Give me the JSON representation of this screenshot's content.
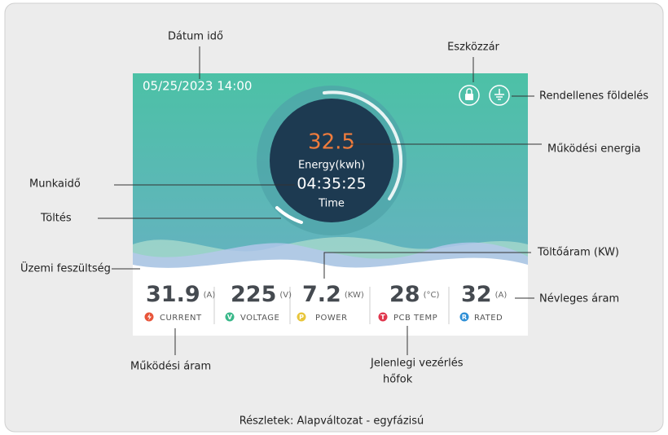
{
  "annotations": {
    "datetime": "Dátum idő",
    "lock": "Eszközzár",
    "ground_fault": "Rendellenes földelés",
    "energy": "Működési energia",
    "work_time": "Munkaidő",
    "charging": "Töltés",
    "charge_power": "Töltőáram (KW)",
    "voltage": "Üzemi feszültség",
    "rated": "Névleges áram",
    "current": "Működési áram",
    "pcb_temp_line1": "Jelenlegi vezérlés",
    "pcb_temp_line2": "hőfok"
  },
  "screen": {
    "datetime": "05/25/2023 14:00",
    "energy_value": "32.5",
    "energy_label": "Energy(kwh)",
    "time_value": "04:35:25",
    "time_label": "Time",
    "metrics": [
      {
        "value": "31.9",
        "unit": "(A)",
        "label": "CURRENT"
      },
      {
        "value": "225",
        "unit": "(V)",
        "icon": "V",
        "label": "VOLTAGE"
      },
      {
        "value": "7.2",
        "unit": "(KW)",
        "icon": "P",
        "label": "POWER"
      },
      {
        "value": "28",
        "unit": "(°C)",
        "icon": "T",
        "label": "PCB TEMP"
      },
      {
        "value": "32",
        "unit": "(A)",
        "icon": "R",
        "label": "RATED"
      }
    ]
  },
  "caption": "Részletek: Alapváltozat - egyfázisú"
}
